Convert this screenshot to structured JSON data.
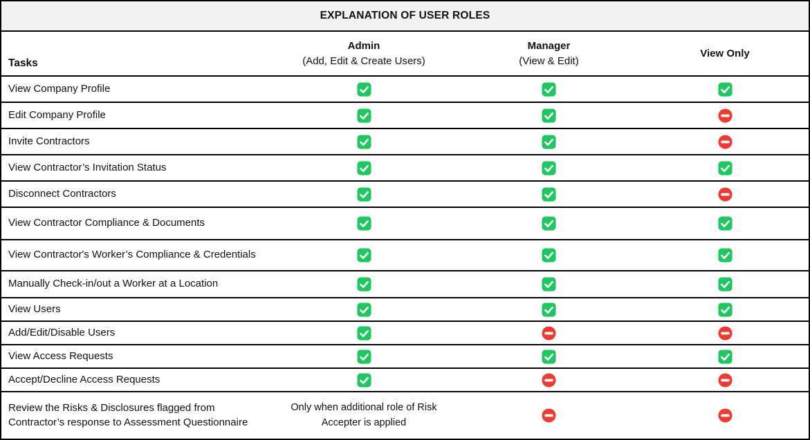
{
  "title": "EXPLANATION OF USER ROLES",
  "columns": {
    "tasks_label": "Tasks",
    "admin": {
      "name": "Admin",
      "subtitle": "(Add, Edit & Create Users)"
    },
    "manager": {
      "name": "Manager",
      "subtitle": "(View & Edit)"
    },
    "view_only": {
      "name": "View Only",
      "subtitle": ""
    }
  },
  "colors": {
    "allowed_green": "#1ec75f",
    "denied_red": "#ee3a33",
    "title_bg": "#f2f2f2",
    "border": "#000000"
  },
  "legend": {
    "check": "allowed",
    "deny": "not-allowed"
  },
  "rows": [
    {
      "task": "View Company Profile",
      "admin": "check",
      "manager": "check",
      "view_only": "check"
    },
    {
      "task": "Edit Company Profile",
      "admin": "check",
      "manager": "check",
      "view_only": "deny"
    },
    {
      "task": "Invite Contractors",
      "admin": "check",
      "manager": "check",
      "view_only": "deny"
    },
    {
      "task": "View Contractor’s Invitation Status",
      "admin": "check",
      "manager": "check",
      "view_only": "check"
    },
    {
      "task": "Disconnect Contractors",
      "admin": "check",
      "manager": "check",
      "view_only": "deny"
    },
    {
      "task": "View Contractor Compliance & Documents",
      "admin": "check",
      "manager": "check",
      "view_only": "check"
    },
    {
      "task": "View Contractor's Worker’s Compliance & Credentials",
      "admin": "check",
      "manager": "check",
      "view_only": "check"
    },
    {
      "task": "Manually Check-in/out a Worker at a Location",
      "admin": "check",
      "manager": "check",
      "view_only": "check"
    },
    {
      "task": "View Users",
      "admin": "check",
      "manager": "check",
      "view_only": "check"
    },
    {
      "task": "Add/Edit/Disable Users",
      "admin": "check",
      "manager": "deny",
      "view_only": "deny"
    },
    {
      "task": "View Access Requests",
      "admin": "check",
      "manager": "check",
      "view_only": "check"
    },
    {
      "task": "Accept/Decline Access Requests",
      "admin": "check",
      "manager": "deny",
      "view_only": "deny"
    },
    {
      "task": "Review the Risks & Disclosures flagged from Contractor’s response to Assessment Questionnaire",
      "admin": "text",
      "admin_text": "Only when additional role of Risk Accepter is applied",
      "manager": "deny",
      "view_only": "deny"
    }
  ]
}
